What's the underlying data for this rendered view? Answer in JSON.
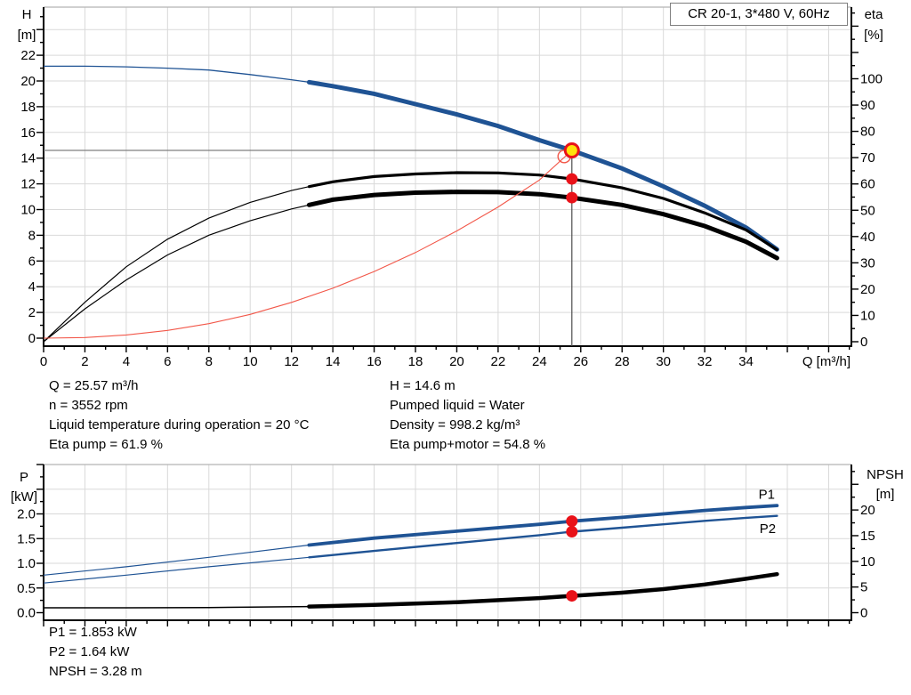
{
  "title_box": "CR 20-1, 3*480 V, 60Hz",
  "duty_info": {
    "left": [
      "Q = 25.57 m³/h",
      "n = 3552 rpm",
      "Liquid temperature during operation = 20 °C",
      "Eta pump = 61.9 %"
    ],
    "right": [
      "H = 14.6 m",
      "Pumped liquid = Water",
      "Density = 998.2 kg/m³",
      "Eta pump+motor = 54.8 %"
    ],
    "bottom": [
      "P1 = 1.853 kW",
      "P2 = 1.64 kW",
      "NPSH = 3.28 m"
    ]
  },
  "colors": {
    "curve_blue": "#1f5394",
    "curve_black": "#000000",
    "system_red": "#f25749",
    "dot_red": "#e91219",
    "duty_yellow": "#ffe10a",
    "grid": "#d9d9d9",
    "axis": "#000000",
    "frame_gray": "#b3b3b3",
    "ref_h": "#7f7f7f",
    "ref_v": "#4d4d4d"
  },
  "chart_data": [
    {
      "type": "line",
      "title": "CR 20-1, 3*480 V, 60Hz",
      "x": {
        "label": "Q [m³/h]",
        "min": 0,
        "max": 39.1,
        "major_step": 2,
        "minor_step": 1,
        "labeled_until": 34
      },
      "y_left": {
        "label": "H",
        "unit": "[m]",
        "min": 0,
        "max": 25.7,
        "major_step": 2,
        "minor_step": 1,
        "labeled_until": 22,
        "decimals": 0
      },
      "y_right": {
        "label": "eta",
        "unit": "[%]",
        "min": 0,
        "max": 127,
        "major_step": 10,
        "minor_step": 5,
        "labeled_until": 100,
        "decimals": 0
      },
      "grid": true,
      "series": [
        {
          "name": "head-curve",
          "axis": "left",
          "color": "curve_blue",
          "thick_from": 12.85,
          "points": [
            [
              0,
              21.15
            ],
            [
              2,
              21.15
            ],
            [
              4,
              21.1
            ],
            [
              6,
              21.0
            ],
            [
              8,
              20.85
            ],
            [
              10,
              20.5
            ],
            [
              12,
              20.1
            ],
            [
              12.85,
              19.9
            ],
            [
              14,
              19.6
            ],
            [
              16,
              19.0
            ],
            [
              18,
              18.2
            ],
            [
              20,
              17.4
            ],
            [
              22,
              16.5
            ],
            [
              24,
              15.4
            ],
            [
              25.57,
              14.6
            ],
            [
              28,
              13.2
            ],
            [
              30,
              11.8
            ],
            [
              32,
              10.3
            ],
            [
              34,
              8.6
            ],
            [
              35.5,
              6.9
            ]
          ]
        },
        {
          "name": "eta-pump-curve",
          "axis": "right",
          "color": "curve_black",
          "thick_from": 12.85,
          "points": [
            [
              0,
              0
            ],
            [
              2,
              15
            ],
            [
              4,
              28.5
            ],
            [
              6,
              39
            ],
            [
              8,
              47
            ],
            [
              10,
              53
            ],
            [
              12,
              57.5
            ],
            [
              12.85,
              59
            ],
            [
              14,
              60.8
            ],
            [
              16,
              62.8
            ],
            [
              18,
              63.8
            ],
            [
              20,
              64.3
            ],
            [
              22,
              64.2
            ],
            [
              24,
              63.4
            ],
            [
              25.57,
              61.9
            ],
            [
              28,
              58.5
            ],
            [
              30,
              54.5
            ],
            [
              32,
              49
            ],
            [
              34,
              42.5
            ],
            [
              35.5,
              35
            ]
          ]
        },
        {
          "name": "eta-pump-motor-curve",
          "axis": "right",
          "color": "curve_black",
          "thick_from": 12.85,
          "points": [
            [
              0,
              0
            ],
            [
              2,
              12.5
            ],
            [
              4,
              23.5
            ],
            [
              6,
              33
            ],
            [
              8,
              40.5
            ],
            [
              10,
              46
            ],
            [
              12,
              50.5
            ],
            [
              12.85,
              52
            ],
            [
              14,
              54
            ],
            [
              16,
              55.8
            ],
            [
              18,
              56.7
            ],
            [
              20,
              57
            ],
            [
              22,
              56.9
            ],
            [
              24,
              56.1
            ],
            [
              25.57,
              54.8
            ],
            [
              28,
              52
            ],
            [
              30,
              48.5
            ],
            [
              32,
              44
            ],
            [
              34,
              38
            ],
            [
              35.5,
              31.8
            ]
          ]
        },
        {
          "name": "system-curve",
          "axis": "left",
          "color": "system_red",
          "thick_from": null,
          "points": [
            [
              0,
              0
            ],
            [
              2,
              0.05
            ],
            [
              4,
              0.25
            ],
            [
              6,
              0.6
            ],
            [
              8,
              1.13
            ],
            [
              10,
              1.85
            ],
            [
              12,
              2.78
            ],
            [
              14,
              3.88
            ],
            [
              16,
              5.18
            ],
            [
              18,
              6.66
            ],
            [
              20,
              8.34
            ],
            [
              22,
              10.2
            ],
            [
              24,
              12.3
            ],
            [
              25.57,
              14.6
            ]
          ]
        }
      ],
      "ref_lines": [
        {
          "dir": "h",
          "axis": "left",
          "v": 14.6,
          "to_x": 25.57
        },
        {
          "dir": "v",
          "axis": "left",
          "x": 25.57,
          "from_v": 14.6
        }
      ],
      "markers": [
        {
          "type": "dot",
          "x": 25.57,
          "axis": "right",
          "v": 61.9
        },
        {
          "type": "dot",
          "x": 25.57,
          "axis": "right",
          "v": 54.8
        },
        {
          "type": "open",
          "x": 25.2,
          "axis": "left",
          "v": 14.13
        },
        {
          "type": "duty",
          "x": 25.57,
          "axis": "left",
          "v": 14.6
        }
      ],
      "duty_point": {
        "Q": 25.57,
        "H": 14.6,
        "eta_pump": 61.9,
        "eta_pump_motor": 54.8
      }
    },
    {
      "type": "line",
      "title": "",
      "x": {
        "label": "",
        "min": 0,
        "max": 39.1,
        "major_step": 2,
        "minor_step": 1,
        "labeled_until": -1
      },
      "y_left": {
        "label": "P",
        "unit": "[kW]",
        "min": 0,
        "max": 2.99,
        "major_step": 0.5,
        "minor_step": 0.25,
        "labeled_until": 2.0,
        "decimals": 1
      },
      "y_right": {
        "label": "NPSH",
        "unit": "[m]",
        "min": 0,
        "max": 28.8,
        "major_step": 5,
        "minor_step": 2.5,
        "labeled_until": 20,
        "decimals": 0
      },
      "grid": true,
      "series": [
        {
          "name": "p1-curve",
          "axis": "left",
          "color": "curve_blue",
          "thick_from": 12.85,
          "label": "P1",
          "label_at": [
            35.0,
            2.4
          ],
          "points": [
            [
              0,
              0.76
            ],
            [
              4,
              0.93
            ],
            [
              8,
              1.12
            ],
            [
              12.85,
              1.37
            ],
            [
              16,
              1.51
            ],
            [
              20,
              1.65
            ],
            [
              24,
              1.79
            ],
            [
              25.57,
              1.853
            ],
            [
              28,
              1.93
            ],
            [
              30,
              2.0
            ],
            [
              32,
              2.07
            ],
            [
              34,
              2.13
            ],
            [
              35.5,
              2.17
            ]
          ]
        },
        {
          "name": "p2-curve",
          "axis": "left",
          "color": "curve_blue",
          "thick_from": 12.85,
          "label": "P2",
          "label_at": [
            35.05,
            1.7
          ],
          "points": [
            [
              0,
              0.6
            ],
            [
              4,
              0.76
            ],
            [
              8,
              0.93
            ],
            [
              12.85,
              1.12
            ],
            [
              16,
              1.25
            ],
            [
              20,
              1.41
            ],
            [
              24,
              1.57
            ],
            [
              25.57,
              1.64
            ],
            [
              28,
              1.72
            ],
            [
              30,
              1.79
            ],
            [
              32,
              1.86
            ],
            [
              34,
              1.92
            ],
            [
              35.5,
              1.96
            ]
          ]
        },
        {
          "name": "npsh-curve",
          "axis": "right",
          "color": "curve_black",
          "thick_from": 12.85,
          "points": [
            [
              0,
              0.95
            ],
            [
              4,
              0.96
            ],
            [
              8,
              1.0
            ],
            [
              12.85,
              1.2
            ],
            [
              16,
              1.5
            ],
            [
              20,
              2.05
            ],
            [
              24,
              2.85
            ],
            [
              25.57,
              3.28
            ],
            [
              28,
              3.9
            ],
            [
              30,
              4.6
            ],
            [
              32,
              5.5
            ],
            [
              34,
              6.6
            ],
            [
              35.5,
              7.5
            ]
          ]
        }
      ],
      "ref_lines": [],
      "markers": [
        {
          "type": "dot",
          "x": 25.57,
          "axis": "left",
          "v": 1.853
        },
        {
          "type": "dot",
          "x": 25.57,
          "axis": "left",
          "v": 1.64
        },
        {
          "type": "dot",
          "x": 25.57,
          "axis": "right",
          "v": 3.28
        }
      ],
      "duty_point": {
        "Q": 25.57,
        "P1_kW": 1.853,
        "P2_kW": 1.64,
        "NPSH_m": 3.28
      }
    }
  ]
}
